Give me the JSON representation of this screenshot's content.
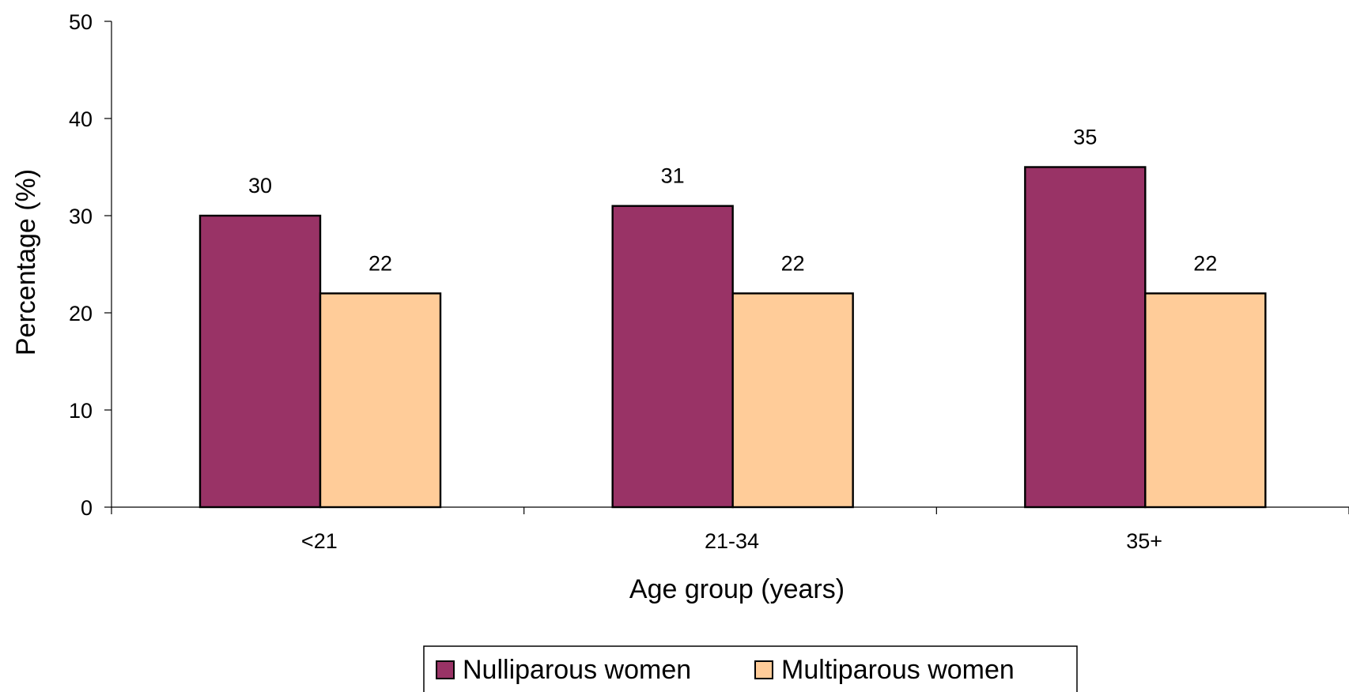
{
  "chart_data": {
    "type": "bar",
    "xlabel": "Age group (years)",
    "ylabel": "Percentage (%)",
    "ylim": [
      0,
      50
    ],
    "yticks": [
      0,
      10,
      20,
      30,
      40,
      50
    ],
    "grid": false,
    "legend_position": "bottom",
    "categories": [
      "<21",
      "21-34",
      "35+"
    ],
    "series": [
      {
        "name": "Nulliparous women",
        "color": "#993366",
        "values": [
          30,
          31,
          35
        ]
      },
      {
        "name": "Multiparous women",
        "color": "#FFCC99",
        "values": [
          22,
          22,
          22
        ]
      }
    ]
  }
}
